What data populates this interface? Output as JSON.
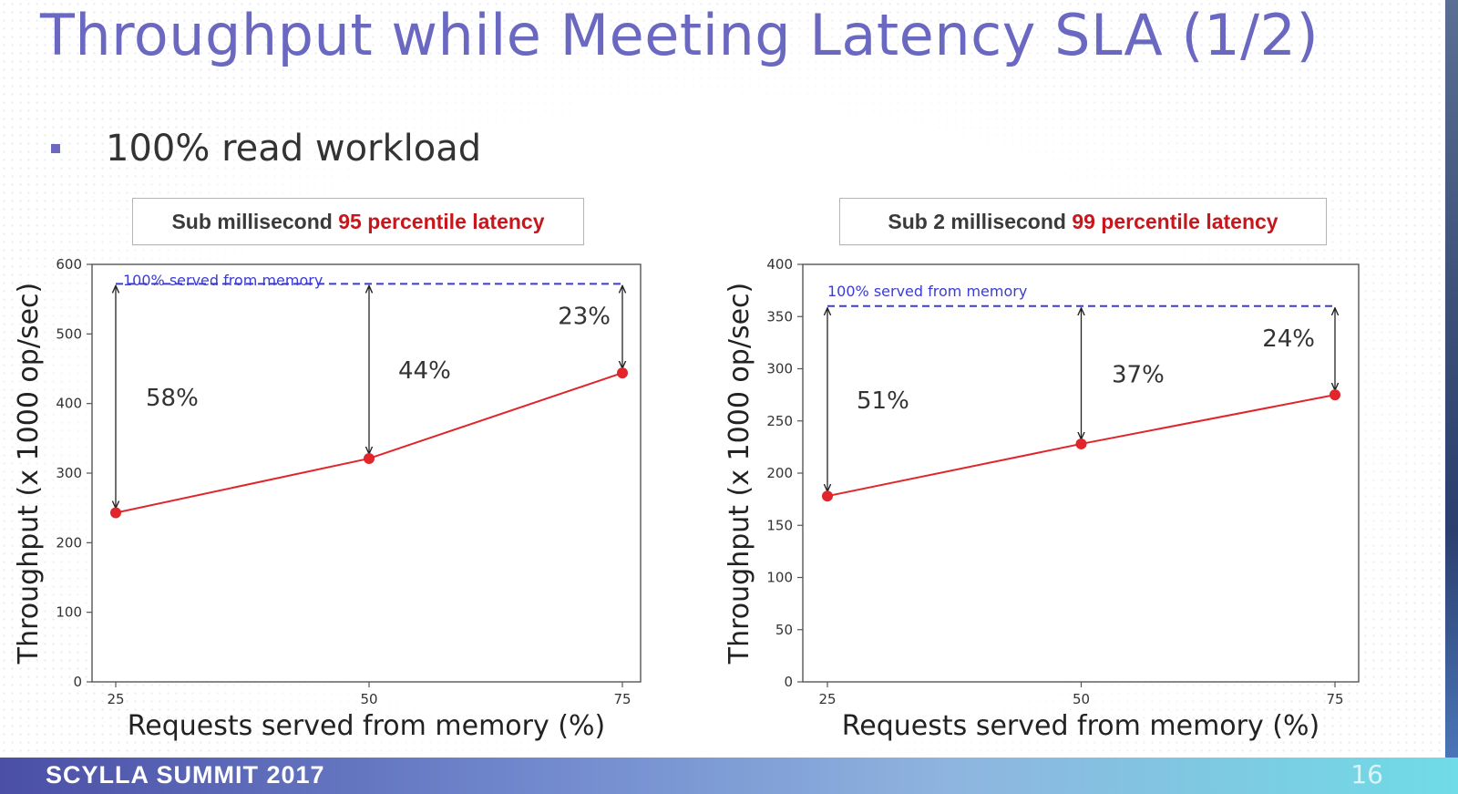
{
  "slide": {
    "title": "Throughput while Meeting Latency SLA (1/2)",
    "bullet": "100% read workload",
    "footer_name": "SCYLLA SUMMIT 2017",
    "page_number": "16"
  },
  "colors": {
    "title": "#6a68c0",
    "line": "#e0252b",
    "reference": "#3b3bd6",
    "highlight": "#c8161d"
  },
  "chart_data": [
    {
      "type": "line",
      "caption_prefix": "Sub millisecond ",
      "caption_highlight": "95 percentile latency",
      "x": [
        25,
        50,
        75
      ],
      "xticks": [
        "25",
        "50",
        "75"
      ],
      "xlabel": "Requests served from memory (%)",
      "ylabel": "Throughput (x 1000 op/sec)",
      "ylim": [
        0,
        600
      ],
      "yticks": [
        0,
        100,
        200,
        300,
        400,
        500,
        600
      ],
      "series": [
        {
          "values": [
            243,
            321,
            444
          ]
        }
      ],
      "reference": {
        "label": "100% served from memory",
        "value": 572
      },
      "gaps": [
        "58%",
        "44%",
        "23%"
      ]
    },
    {
      "type": "line",
      "caption_prefix": "Sub 2 millisecond ",
      "caption_highlight": "99 percentile latency",
      "x": [
        25,
        50,
        75
      ],
      "xticks": [
        "25",
        "50",
        "75"
      ],
      "xlabel": "Requests served from memory (%)",
      "ylabel": "Throughput (x 1000 op/sec)",
      "ylim": [
        0,
        400
      ],
      "yticks": [
        0,
        50,
        100,
        150,
        200,
        250,
        300,
        350,
        400
      ],
      "series": [
        {
          "values": [
            178,
            228,
            275
          ]
        }
      ],
      "reference": {
        "label": "100% served from memory",
        "value": 360
      },
      "gaps": [
        "51%",
        "37%",
        "24%"
      ]
    }
  ]
}
